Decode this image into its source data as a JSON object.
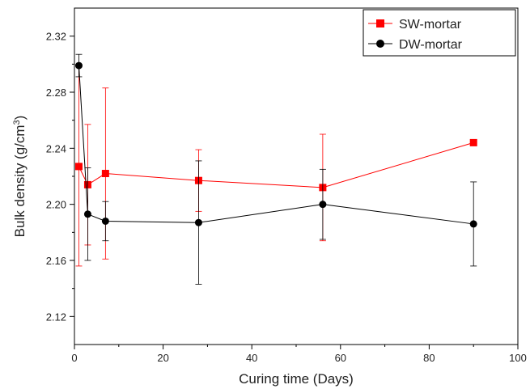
{
  "chart_data": {
    "type": "line",
    "xlabel": "Curing time (Days)",
    "ylabel_main": "Bulk density (g/cm",
    "ylabel_sup": "3",
    "ylabel_close": ")",
    "xlim": [
      0,
      100
    ],
    "ylim": [
      2.1,
      2.34
    ],
    "xticks": [
      0,
      20,
      40,
      60,
      80,
      100
    ],
    "yticks": [
      "2.12",
      "2.16",
      "2.20",
      "2.24",
      "2.28",
      "2.32"
    ],
    "grid": false,
    "legend_position": "top-right",
    "series": [
      {
        "name": "SW-mortar",
        "color": "#ff0000",
        "marker": "square",
        "x": [
          1,
          3,
          7,
          28,
          56,
          90
        ],
        "y": [
          2.227,
          2.214,
          2.222,
          2.217,
          2.212,
          2.244
        ],
        "err": [
          0.071,
          0.043,
          0.061,
          0.022,
          0.038,
          0.0
        ]
      },
      {
        "name": "DW-mortar",
        "color": "#000000",
        "marker": "circle",
        "x": [
          1,
          3,
          7,
          28,
          56,
          90
        ],
        "y": [
          2.299,
          2.193,
          2.188,
          2.187,
          2.2,
          2.186
        ],
        "err": [
          0.008,
          0.033,
          0.014,
          0.044,
          0.025,
          0.03
        ]
      }
    ]
  }
}
